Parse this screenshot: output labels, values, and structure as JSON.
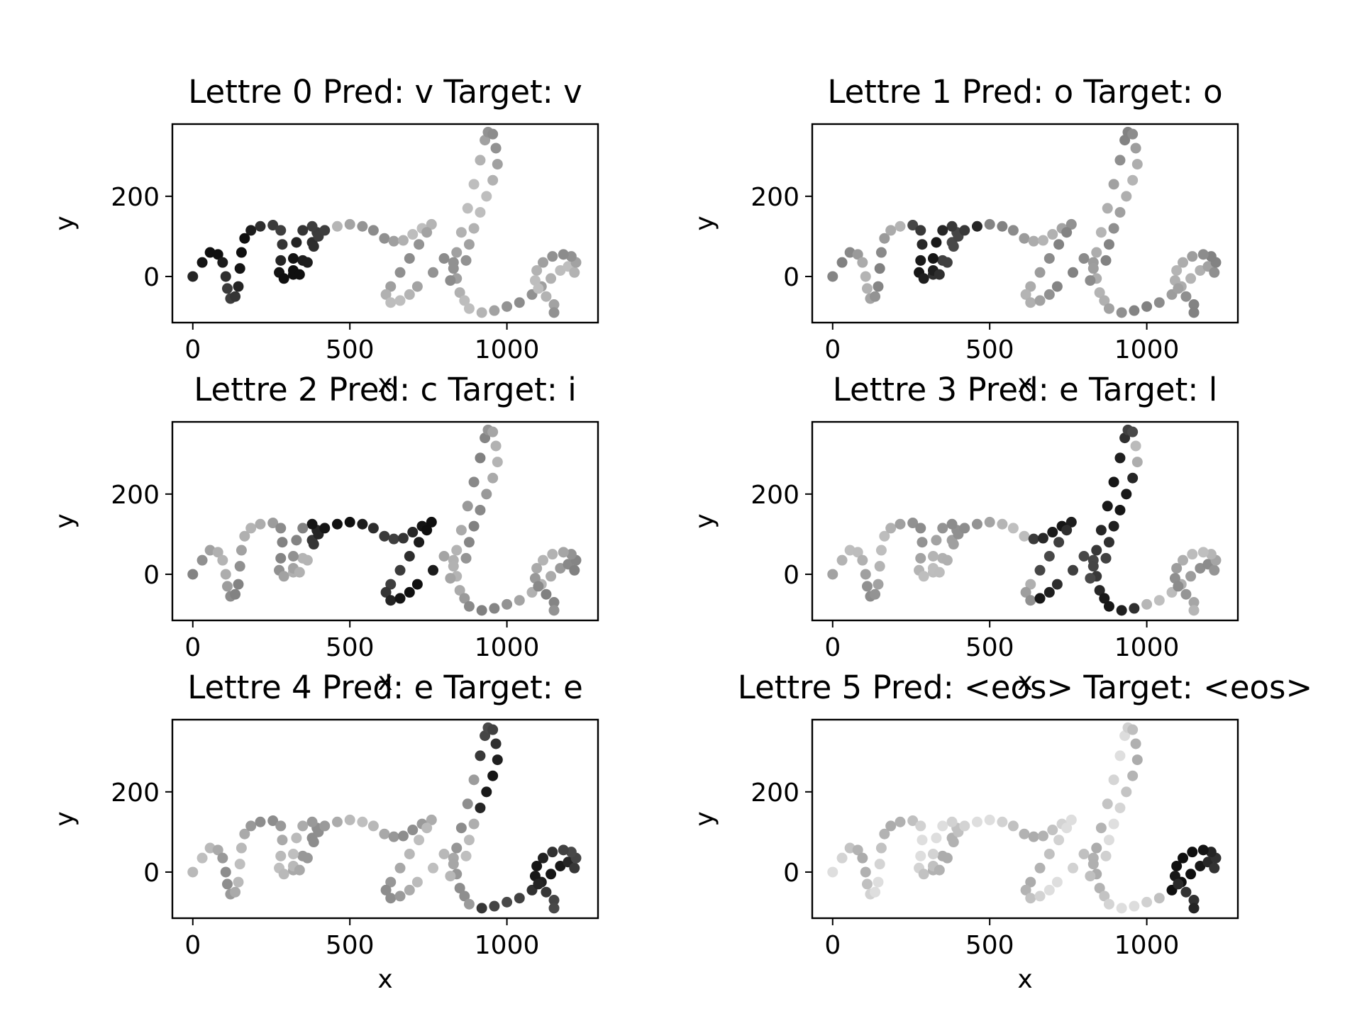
{
  "chart_data": {
    "type": "scatter",
    "xlabel": "x",
    "ylabel": "y",
    "xlim": [
      -65,
      1290
    ],
    "ylim": [
      -115,
      380
    ],
    "xticks": [
      "0",
      "500",
      "1000"
    ],
    "xtick_values": [
      0,
      500,
      1000
    ],
    "yticks": [
      "0",
      "200"
    ],
    "ytick_values": [
      0,
      200
    ],
    "colormap": "grayscale (darker = higher attention weight)",
    "panels": [
      {
        "title": "Lettre 0 Pred: v Target: v",
        "focus": [
          0,
          420
        ],
        "focus_weight": 0.9,
        "base": 0.3
      },
      {
        "title": "Lettre 1 Pred: o Target: o",
        "focus": [
          250,
          480
        ],
        "focus_weight": 0.85,
        "base": 0.35
      },
      {
        "title": "Lettre 2 Pred: c Target: i",
        "focus": [
          380,
          780
        ],
        "focus_weight": 0.9,
        "base": 0.35
      },
      {
        "title": "Lettre 3 Pred: e Target: l",
        "focus": [
          640,
          960
        ],
        "focus_weight": 0.85,
        "base": 0.3
      },
      {
        "title": "Lettre 4 Pred: e Target: e",
        "focus": [
          900,
          1230
        ],
        "focus_weight": 0.85,
        "base": 0.3
      },
      {
        "title": "Lettre 5 Pred: <eos> Target: <eos>",
        "focus": [
          1060,
          1240
        ],
        "focus_weight": 0.95,
        "base": 0.15
      }
    ],
    "trajectory": [
      [
        0,
        0
      ],
      [
        30,
        35
      ],
      [
        55,
        60
      ],
      [
        80,
        55
      ],
      [
        95,
        35
      ],
      [
        105,
        0
      ],
      [
        110,
        -30
      ],
      [
        120,
        -55
      ],
      [
        135,
        -50
      ],
      [
        145,
        -25
      ],
      [
        150,
        20
      ],
      [
        155,
        60
      ],
      [
        165,
        95
      ],
      [
        185,
        115
      ],
      [
        215,
        125
      ],
      [
        255,
        128
      ],
      [
        280,
        115
      ],
      [
        285,
        80
      ],
      [
        280,
        40
      ],
      [
        275,
        10
      ],
      [
        290,
        -5
      ],
      [
        320,
        5
      ],
      [
        350,
        40
      ],
      [
        380,
        85
      ],
      [
        395,
        110
      ],
      [
        380,
        125
      ],
      [
        350,
        115
      ],
      [
        330,
        85
      ],
      [
        320,
        45
      ],
      [
        320,
        15
      ],
      [
        340,
        5
      ],
      [
        365,
        35
      ],
      [
        385,
        75
      ],
      [
        400,
        100
      ],
      [
        420,
        115
      ],
      [
        460,
        125
      ],
      [
        500,
        130
      ],
      [
        540,
        125
      ],
      [
        575,
        115
      ],
      [
        610,
        95
      ],
      [
        640,
        88
      ],
      [
        670,
        90
      ],
      [
        700,
        105
      ],
      [
        730,
        120
      ],
      [
        760,
        130
      ],
      [
        745,
        110
      ],
      [
        720,
        80
      ],
      [
        690,
        45
      ],
      [
        660,
        10
      ],
      [
        630,
        -25
      ],
      [
        615,
        -45
      ],
      [
        630,
        -65
      ],
      [
        660,
        -60
      ],
      [
        690,
        -45
      ],
      [
        715,
        -25
      ],
      [
        765,
        10
      ],
      [
        800,
        45
      ],
      [
        830,
        35
      ],
      [
        840,
        -5
      ],
      [
        850,
        -40
      ],
      [
        865,
        -60
      ],
      [
        880,
        -80
      ],
      [
        920,
        -90
      ],
      [
        960,
        -85
      ],
      [
        1000,
        -75
      ],
      [
        1040,
        -65
      ],
      [
        1080,
        -45
      ],
      [
        1110,
        -25
      ],
      [
        1140,
        -5
      ],
      [
        1170,
        15
      ],
      [
        1195,
        25
      ],
      [
        1215,
        10
      ],
      [
        1220,
        35
      ],
      [
        1205,
        50
      ],
      [
        1180,
        55
      ],
      [
        1145,
        50
      ],
      [
        1115,
        35
      ],
      [
        1095,
        15
      ],
      [
        1090,
        -10
      ],
      [
        1100,
        -30
      ],
      [
        1125,
        -50
      ],
      [
        1150,
        -70
      ],
      [
        1150,
        -90
      ],
      [
        820,
        -10
      ],
      [
        830,
        20
      ],
      [
        840,
        60
      ],
      [
        855,
        110
      ],
      [
        875,
        170
      ],
      [
        895,
        230
      ],
      [
        915,
        290
      ],
      [
        930,
        340
      ],
      [
        940,
        360
      ],
      [
        955,
        355
      ],
      [
        965,
        320
      ],
      [
        970,
        280
      ],
      [
        955,
        240
      ],
      [
        935,
        200
      ],
      [
        915,
        160
      ],
      [
        895,
        120
      ],
      [
        880,
        80
      ],
      [
        870,
        40
      ]
    ]
  }
}
